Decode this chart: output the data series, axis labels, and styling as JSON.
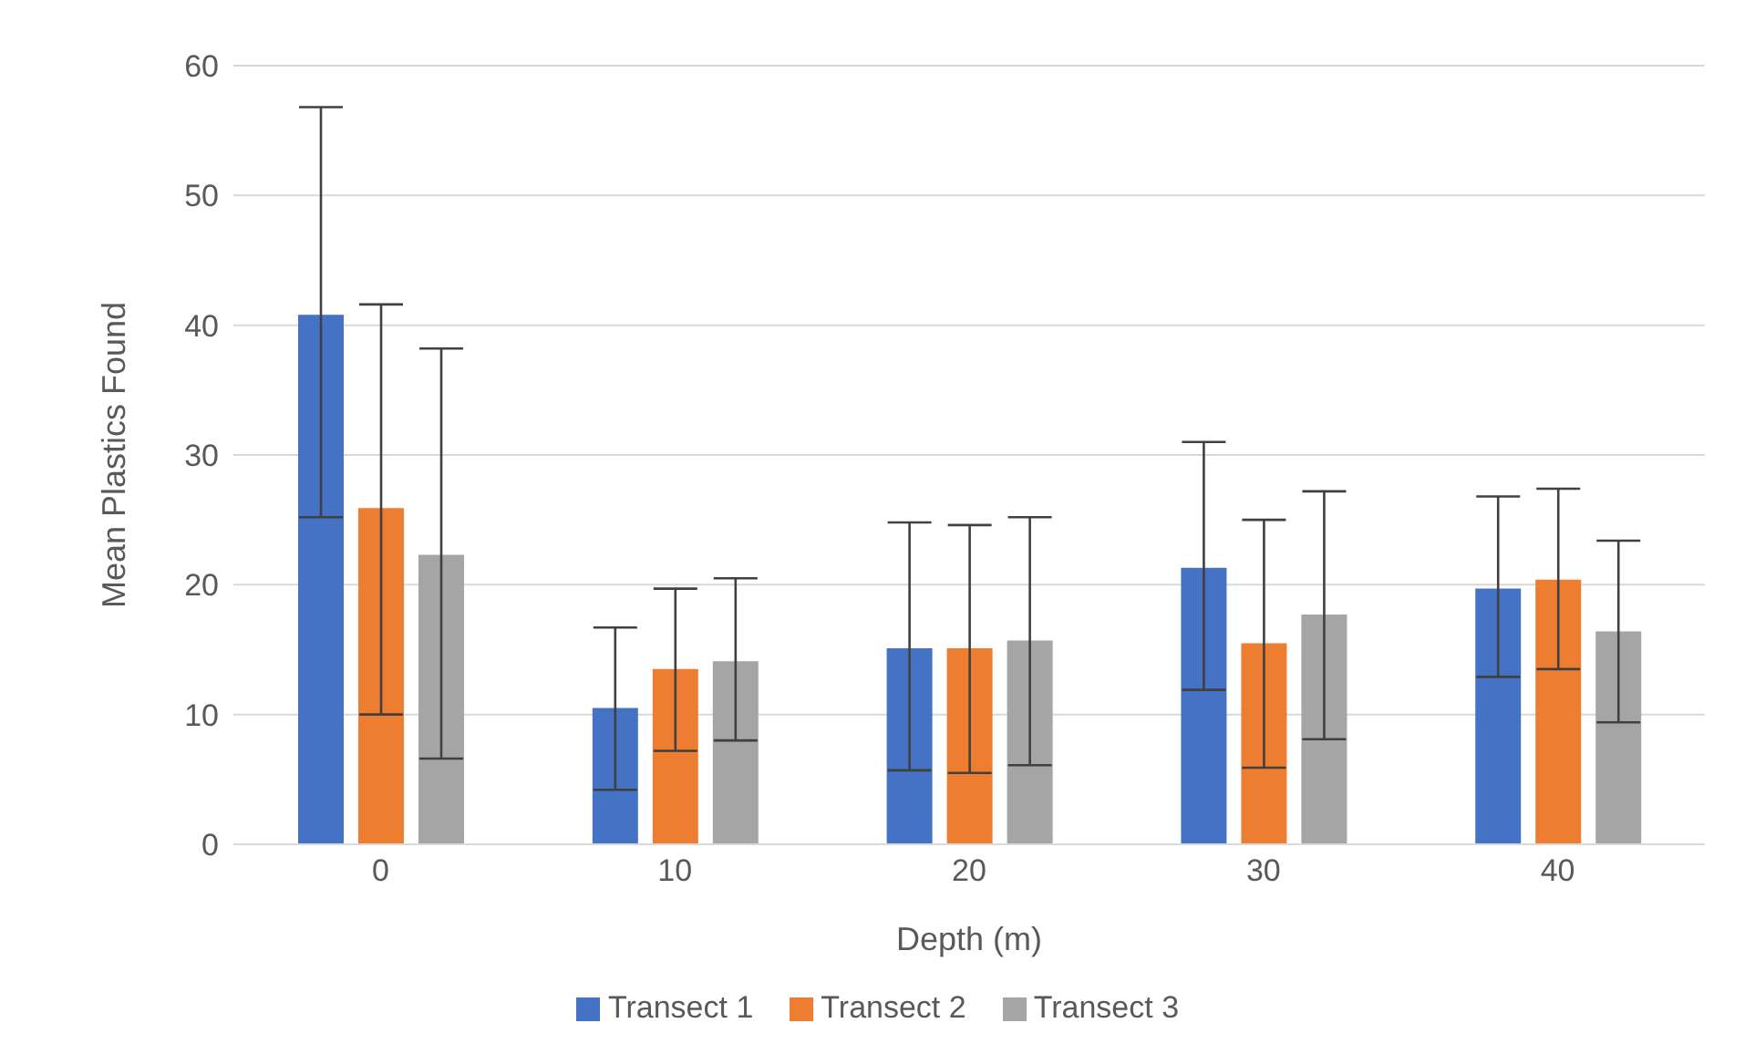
{
  "chart_data": {
    "type": "bar",
    "xlabel": "Depth (m)",
    "ylabel": "Mean Plastics Found",
    "categories": [
      "0",
      "10",
      "20",
      "30",
      "40"
    ],
    "series": [
      {
        "name": "Transect 1",
        "color": "#4472c4",
        "values": [
          40.8,
          10.5,
          15.1,
          21.3,
          19.7
        ],
        "errors": [
          [
            25.2,
            56.8
          ],
          [
            4.2,
            16.7
          ],
          [
            5.7,
            24.8
          ],
          [
            11.9,
            31.0
          ],
          [
            12.9,
            26.8
          ]
        ]
      },
      {
        "name": "Transect 2",
        "color": "#ed7d31",
        "values": [
          25.9,
          13.5,
          15.1,
          15.5,
          20.4
        ],
        "errors": [
          [
            10.0,
            41.6
          ],
          [
            7.2,
            19.7
          ],
          [
            5.5,
            24.6
          ],
          [
            5.9,
            25.0
          ],
          [
            13.5,
            27.4
          ]
        ]
      },
      {
        "name": "Transect 3",
        "color": "#a5a5a5",
        "values": [
          22.3,
          14.1,
          15.7,
          17.7,
          16.4
        ],
        "errors": [
          [
            6.6,
            38.2
          ],
          [
            8.0,
            20.5
          ],
          [
            6.1,
            25.2
          ],
          [
            8.1,
            27.2
          ],
          [
            9.4,
            23.4
          ]
        ]
      }
    ],
    "ylim": [
      0,
      60
    ],
    "yticks": [
      0,
      10,
      20,
      30,
      40,
      50,
      60
    ],
    "grid": "y",
    "legend": "bottom"
  }
}
